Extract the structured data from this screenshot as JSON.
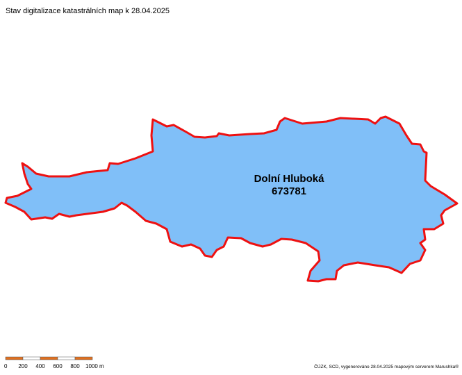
{
  "header": {
    "title": "Stav digitalizace katastrálních map k 28.04.2025"
  },
  "area": {
    "name": "Dolní Hluboká",
    "code": "673781"
  },
  "scale": {
    "labels": [
      "0",
      "200",
      "400",
      "600",
      "800",
      "1000 m"
    ]
  },
  "footer": {
    "credit": "ČÚZK, SCD, vygenerováno 28.04.2025 mapovým serverem Marushka®"
  }
}
